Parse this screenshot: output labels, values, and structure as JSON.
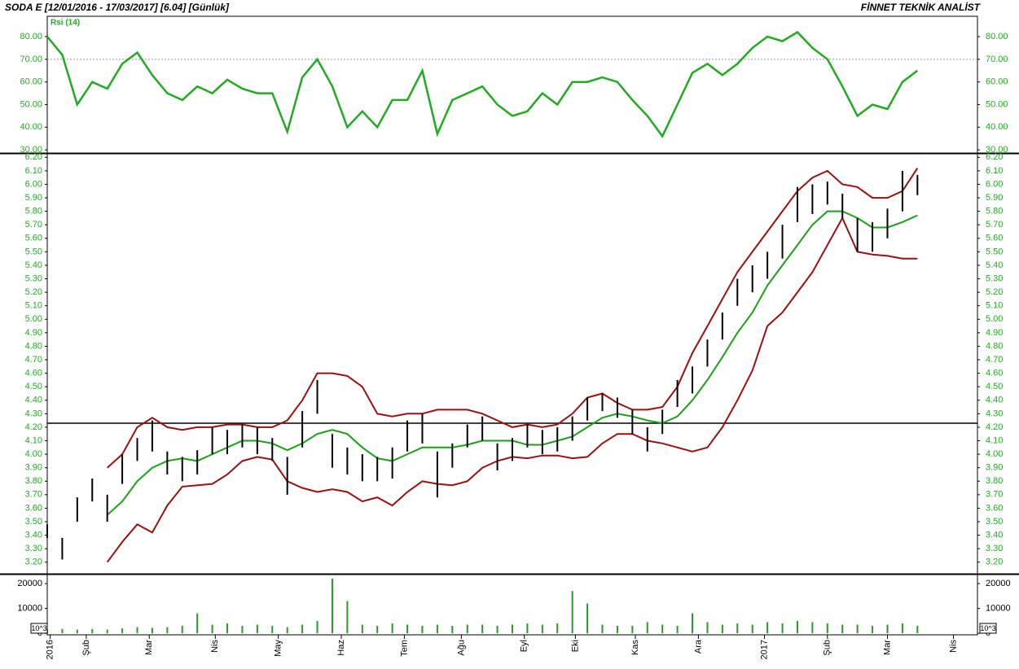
{
  "header": {
    "title": "SODA  E  [12/01/2016 - 17/03/2017]  [6.04]  [Günlük]",
    "brand": "FİNNET TEKNİK ANALİST"
  },
  "chart_data": [
    {
      "type": "line",
      "label": "Rsi (14)",
      "color": "#22aa22",
      "tick_color": "#22aa22",
      "ref_line": 70,
      "xlim": [
        0,
        310
      ],
      "ylim": [
        28.6,
        89
      ],
      "yticks": [
        {
          "value": 30,
          "label": "30.00"
        },
        {
          "value": 40,
          "label": "40.00"
        },
        {
          "value": 50,
          "label": "50.00"
        },
        {
          "value": 60,
          "label": "60.00"
        },
        {
          "value": 70,
          "label": "70.00"
        },
        {
          "value": 80,
          "label": "80.00"
        }
      ],
      "x": [
        0,
        5,
        10,
        15,
        20,
        25,
        30,
        35,
        40,
        45,
        50,
        55,
        60,
        65,
        70,
        75,
        80,
        85,
        90,
        95,
        100,
        105,
        110,
        115,
        120,
        125,
        130,
        135,
        140,
        145,
        150,
        155,
        160,
        165,
        170,
        175,
        180,
        185,
        190,
        195,
        200,
        205,
        210,
        215,
        220,
        225,
        230,
        235,
        240,
        245,
        250,
        255,
        260,
        265,
        270,
        275,
        280,
        285,
        290
      ],
      "values": [
        80,
        72,
        50,
        60,
        57,
        68,
        73,
        63,
        55,
        52,
        58,
        55,
        61,
        57,
        55,
        55,
        38,
        62,
        70,
        58,
        40,
        47,
        40,
        52,
        52,
        65,
        37,
        52,
        55,
        58,
        50,
        45,
        47,
        55,
        50,
        60,
        60,
        62,
        60,
        52,
        45,
        36,
        50,
        64,
        68,
        63,
        68,
        75,
        80,
        78,
        82,
        75,
        70,
        58,
        45,
        50,
        48,
        60,
        65
      ]
    },
    {
      "type": "hilo",
      "bar_color": "#000000",
      "mid_color": "#1aa01a",
      "band_color": "#9b1010",
      "tick_color": "#22aa22",
      "hline": 4.23,
      "xlim": [
        0,
        310
      ],
      "ylim": [
        3.12,
        6.22
      ],
      "yticks": [
        {
          "value": 3.2,
          "label": "3.20"
        },
        {
          "value": 3.3,
          "label": "3.30"
        },
        {
          "value": 3.4,
          "label": "3.40"
        },
        {
          "value": 3.5,
          "label": "3.50"
        },
        {
          "value": 3.6,
          "label": "3.60"
        },
        {
          "value": 3.7,
          "label": "3.70"
        },
        {
          "value": 3.8,
          "label": "3.80"
        },
        {
          "value": 3.9,
          "label": "3.90"
        },
        {
          "value": 4.0,
          "label": "4.00"
        },
        {
          "value": 4.1,
          "label": "4.10"
        },
        {
          "value": 4.2,
          "label": "4.20"
        },
        {
          "value": 4.3,
          "label": "4.30"
        },
        {
          "value": 4.4,
          "label": "4.40"
        },
        {
          "value": 4.5,
          "label": "4.50"
        },
        {
          "value": 4.6,
          "label": "4.60"
        },
        {
          "value": 4.7,
          "label": "4.70"
        },
        {
          "value": 4.8,
          "label": "4.80"
        },
        {
          "value": 4.9,
          "label": "4.90"
        },
        {
          "value": 5.0,
          "label": "5.00"
        },
        {
          "value": 5.1,
          "label": "5.10"
        },
        {
          "value": 5.2,
          "label": "5.20"
        },
        {
          "value": 5.3,
          "label": "5.30"
        },
        {
          "value": 5.4,
          "label": "5.40"
        },
        {
          "value": 5.5,
          "label": "5.50"
        },
        {
          "value": 5.6,
          "label": "5.60"
        },
        {
          "value": 5.7,
          "label": "5.70"
        },
        {
          "value": 5.8,
          "label": "5.80"
        },
        {
          "value": 5.9,
          "label": "5.90"
        },
        {
          "value": 6.0,
          "label": "6.00"
        },
        {
          "value": 6.1,
          "label": "6.10"
        },
        {
          "value": 6.2,
          "label": "6.20"
        }
      ],
      "x": [
        0,
        5,
        10,
        15,
        20,
        25,
        30,
        35,
        40,
        45,
        50,
        55,
        60,
        65,
        70,
        75,
        80,
        85,
        90,
        95,
        100,
        105,
        110,
        115,
        120,
        125,
        130,
        135,
        140,
        145,
        150,
        155,
        160,
        165,
        170,
        175,
        180,
        185,
        190,
        195,
        200,
        205,
        210,
        215,
        220,
        225,
        230,
        235,
        240,
        245,
        250,
        255,
        260,
        265,
        270,
        275,
        280,
        285,
        290
      ],
      "high": [
        3.48,
        3.38,
        3.68,
        3.82,
        3.7,
        4.0,
        4.12,
        4.25,
        4.02,
        3.98,
        4.03,
        4.2,
        4.18,
        4.22,
        4.2,
        4.12,
        3.98,
        4.32,
        4.55,
        4.15,
        4.05,
        4.0,
        3.98,
        4.05,
        4.25,
        4.3,
        4.02,
        4.08,
        4.22,
        4.28,
        4.08,
        4.12,
        4.22,
        4.18,
        4.2,
        4.28,
        4.42,
        4.45,
        4.42,
        4.33,
        4.2,
        4.33,
        4.55,
        4.65,
        4.85,
        5.05,
        5.3,
        5.4,
        5.5,
        5.7,
        5.98,
        6.0,
        6.02,
        5.93,
        5.75,
        5.72,
        5.82,
        6.1,
        6.07
      ],
      "low": [
        3.38,
        3.22,
        3.5,
        3.65,
        3.5,
        3.78,
        3.95,
        4.02,
        3.85,
        3.8,
        3.85,
        4.0,
        4.0,
        4.05,
        4.0,
        3.95,
        3.7,
        4.05,
        4.3,
        3.9,
        3.85,
        3.8,
        3.8,
        3.82,
        4.02,
        4.08,
        3.68,
        3.9,
        4.05,
        4.1,
        3.88,
        3.95,
        4.05,
        4.0,
        4.02,
        4.1,
        4.25,
        4.32,
        4.27,
        4.15,
        4.02,
        4.15,
        4.35,
        4.45,
        4.65,
        4.85,
        5.1,
        5.2,
        5.3,
        5.45,
        5.72,
        5.78,
        5.85,
        5.75,
        5.5,
        5.5,
        5.6,
        5.8,
        5.92
      ],
      "mid": [
        null,
        null,
        null,
        null,
        3.55,
        3.65,
        3.8,
        3.9,
        3.95,
        3.97,
        3.95,
        4.0,
        4.05,
        4.1,
        4.1,
        4.08,
        4.03,
        4.08,
        4.15,
        4.18,
        4.15,
        4.05,
        3.97,
        3.95,
        4.0,
        4.05,
        4.05,
        4.05,
        4.07,
        4.1,
        4.1,
        4.1,
        4.07,
        4.07,
        4.1,
        4.13,
        4.2,
        4.27,
        4.3,
        4.28,
        4.25,
        4.23,
        4.28,
        4.4,
        4.55,
        4.72,
        4.9,
        5.05,
        5.25,
        5.4,
        5.55,
        5.7,
        5.8,
        5.8,
        5.75,
        5.68,
        5.68,
        5.72,
        5.77
      ],
      "upper": [
        null,
        null,
        null,
        null,
        3.9,
        4.0,
        4.2,
        4.27,
        4.2,
        4.18,
        4.2,
        4.2,
        4.22,
        4.22,
        4.2,
        4.2,
        4.25,
        4.4,
        4.6,
        4.6,
        4.58,
        4.5,
        4.3,
        4.28,
        4.3,
        4.3,
        4.33,
        4.33,
        4.33,
        4.3,
        4.25,
        4.2,
        4.22,
        4.2,
        4.22,
        4.3,
        4.42,
        4.45,
        4.38,
        4.33,
        4.33,
        4.35,
        4.5,
        4.75,
        4.95,
        5.15,
        5.35,
        5.5,
        5.65,
        5.8,
        5.95,
        6.05,
        6.1,
        6.0,
        5.98,
        5.9,
        5.9,
        5.95,
        6.12
      ],
      "lower": [
        null,
        null,
        null,
        null,
        3.2,
        3.35,
        3.48,
        3.42,
        3.62,
        3.76,
        3.77,
        3.78,
        3.85,
        3.95,
        3.98,
        3.96,
        3.8,
        3.75,
        3.72,
        3.74,
        3.72,
        3.65,
        3.68,
        3.62,
        3.72,
        3.8,
        3.78,
        3.77,
        3.8,
        3.9,
        3.95,
        3.98,
        3.97,
        3.99,
        3.99,
        3.97,
        3.98,
        4.08,
        4.15,
        4.15,
        4.1,
        4.08,
        4.05,
        4.02,
        4.05,
        4.2,
        4.4,
        4.62,
        4.95,
        5.05,
        5.2,
        5.35,
        5.55,
        5.75,
        5.5,
        5.48,
        5.47,
        5.45,
        5.45
      ]
    },
    {
      "type": "bar",
      "color": "#2a9a2a",
      "tick_color": "#000000",
      "unit_label": "10^3",
      "xlim": [
        0,
        310
      ],
      "ylim": [
        -600,
        23300
      ],
      "yticks": [
        0,
        10000,
        20000
      ],
      "xticks": [
        {
          "value": 1,
          "label": "2016"
        },
        {
          "value": 13,
          "label": "Şub"
        },
        {
          "value": 34,
          "label": "Mar"
        },
        {
          "value": 56,
          "label": "Nis"
        },
        {
          "value": 77,
          "label": "May"
        },
        {
          "value": 98,
          "label": "Haz"
        },
        {
          "value": 119,
          "label": "Tem"
        },
        {
          "value": 138,
          "label": "Ağu"
        },
        {
          "value": 159,
          "label": "Eyl"
        },
        {
          "value": 176,
          "label": "Eki"
        },
        {
          "value": 196,
          "label": "Kas"
        },
        {
          "value": 217,
          "label": "Ara"
        },
        {
          "value": 239,
          "label": "2017"
        },
        {
          "value": 260,
          "label": "Şub"
        },
        {
          "value": 280,
          "label": "Mar"
        },
        {
          "value": 302,
          "label": "Nis"
        }
      ],
      "x": [
        0,
        5,
        10,
        15,
        20,
        25,
        30,
        35,
        40,
        45,
        50,
        55,
        60,
        65,
        70,
        75,
        80,
        85,
        90,
        95,
        100,
        105,
        110,
        115,
        120,
        125,
        130,
        135,
        140,
        145,
        150,
        155,
        160,
        165,
        170,
        175,
        180,
        185,
        190,
        195,
        200,
        205,
        210,
        215,
        220,
        225,
        230,
        235,
        240,
        245,
        250,
        255,
        260,
        265,
        270,
        275,
        280,
        285,
        290
      ],
      "values": [
        1500,
        1800,
        1500,
        1700,
        1500,
        2000,
        2500,
        2200,
        2500,
        3000,
        8000,
        3500,
        4000,
        3000,
        3500,
        3000,
        2500,
        3500,
        5000,
        22000,
        13000,
        3500,
        3000,
        4000,
        3500,
        3000,
        3500,
        3000,
        3500,
        3500,
        3000,
        3500,
        4000,
        3500,
        4000,
        17000,
        12000,
        3500,
        3000,
        3000,
        4500,
        3500,
        3000,
        8000,
        4500,
        3500,
        4000,
        3500,
        4500,
        4000,
        5000,
        4500,
        4000,
        3500,
        3500,
        3000,
        3500,
        4000,
        3000
      ]
    }
  ]
}
